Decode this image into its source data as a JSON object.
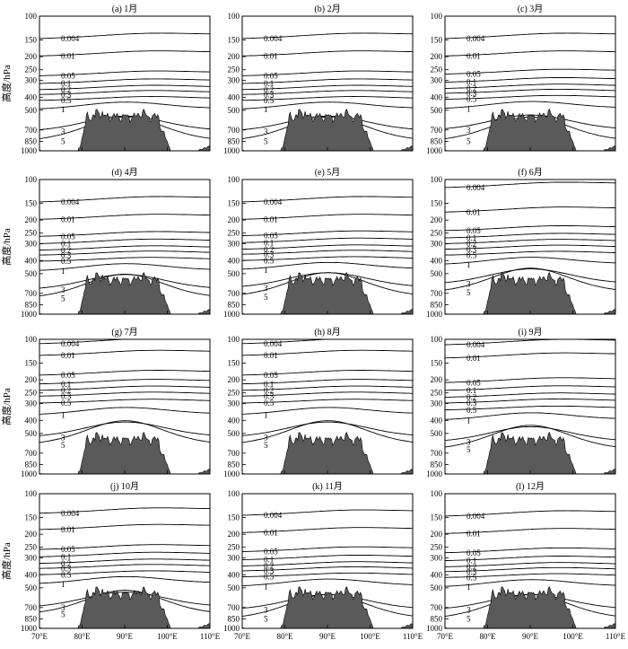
{
  "chart_data": [
    {
      "type": "contour",
      "title": "(a) 1月",
      "ylabel": "高度/hPa",
      "contour_levels": [
        "0.004",
        "0.01",
        "0.05",
        "0.1",
        "0.2",
        "0.3",
        "0.5",
        "1",
        "3",
        "5"
      ],
      "contour_pressure_hPa": [
        147,
        198,
        278,
        317,
        352,
        383,
        423,
        495,
        718,
        850
      ]
    },
    {
      "type": "contour",
      "title": "(b) 2月",
      "ylabel": "",
      "contour_levels": [
        "0.004",
        "0.01",
        "0.05",
        "0.1",
        "0.2",
        "0.3",
        "0.5",
        "1",
        "3",
        "5"
      ],
      "contour_pressure_hPa": [
        147,
        198,
        278,
        317,
        352,
        383,
        423,
        495,
        718,
        850
      ]
    },
    {
      "type": "contour",
      "title": "(c) 3月",
      "ylabel": "",
      "contour_levels": [
        "0.004",
        "0.01",
        "0.05",
        "0.1",
        "0.2",
        "0.3",
        "0.5",
        "1",
        "3",
        "5"
      ],
      "contour_pressure_hPa": [
        147,
        198,
        270,
        310,
        345,
        375,
        415,
        490,
        705,
        850
      ]
    },
    {
      "type": "contour",
      "title": "(d) 4月",
      "ylabel": "高度/hPa",
      "contour_levels": [
        "0.004",
        "0.01",
        "0.05",
        "0.1",
        "0.2",
        "0.3",
        "0.5",
        "1",
        "3",
        "5"
      ],
      "contour_pressure_hPa": [
        147,
        198,
        265,
        300,
        335,
        365,
        405,
        480,
        660,
        765
      ]
    },
    {
      "type": "contour",
      "title": "(e) 5月",
      "ylabel": "",
      "contour_levels": [
        "0.004",
        "0.01",
        "0.05",
        "0.1",
        "0.2",
        "0.3",
        "0.5",
        "1",
        "3",
        "5"
      ],
      "contour_pressure_hPa": [
        147,
        198,
        262,
        295,
        330,
        360,
        400,
        470,
        640,
        745
      ]
    },
    {
      "type": "contour",
      "title": "(f) 6月",
      "ylabel": "",
      "contour_levels": [
        "0.004",
        "0.01",
        "0.05",
        "0.1",
        "0.2",
        "0.3",
        "0.5",
        "1",
        "3",
        "5"
      ],
      "contour_pressure_hPa": [
        115,
        175,
        240,
        272,
        300,
        330,
        365,
        430,
        600,
        690
      ]
    },
    {
      "type": "contour",
      "title": "(g) 7月",
      "ylabel": "高度/hPa",
      "contour_levels": [
        "0.004",
        "0.01",
        "0.05",
        "0.1",
        "0.2",
        "0.3",
        "0.5",
        "1",
        "3",
        "5"
      ],
      "contour_pressure_hPa": [
        108,
        132,
        185,
        215,
        240,
        265,
        298,
        365,
        535,
        610
      ]
    },
    {
      "type": "contour",
      "title": "(h) 8月",
      "ylabel": "",
      "contour_levels": [
        "0.004",
        "0.01",
        "0.05",
        "0.1",
        "0.2",
        "0.3",
        "0.5",
        "1",
        "3",
        "5"
      ],
      "contour_pressure_hPa": [
        108,
        132,
        185,
        215,
        240,
        265,
        298,
        365,
        535,
        610
      ]
    },
    {
      "type": "contour",
      "title": "(i) 9月",
      "ylabel": "",
      "contour_levels": [
        "0.004",
        "0.01",
        "0.05",
        "0.1",
        "0.2",
        "0.3",
        "0.5",
        "1",
        "3",
        "5"
      ],
      "contour_pressure_hPa": [
        110,
        138,
        210,
        240,
        270,
        298,
        335,
        400,
        580,
        660
      ]
    },
    {
      "type": "contour",
      "title": "(j) 10月",
      "ylabel": "高度/hPa",
      "contour_levels": [
        "0.004",
        "0.01",
        "0.05",
        "0.1",
        "0.2",
        "0.3",
        "0.5",
        "1",
        "3",
        "5"
      ],
      "contour_pressure_hPa": [
        140,
        185,
        260,
        295,
        330,
        360,
        400,
        470,
        700,
        790
      ]
    },
    {
      "type": "contour",
      "title": "(k) 11月",
      "ylabel": "",
      "contour_levels": [
        "0.004",
        "0.01",
        "0.05",
        "0.1",
        "0.2",
        "0.3",
        "0.5",
        "1",
        "3",
        "5"
      ],
      "contour_pressure_hPa": [
        145,
        195,
        270,
        310,
        345,
        375,
        415,
        490,
        730,
        850
      ]
    },
    {
      "type": "contour",
      "title": "(l) 12月",
      "ylabel": "",
      "contour_levels": [
        "0.004",
        "0.01",
        "0.05",
        "0.1",
        "0.2",
        "0.3",
        "0.5",
        "1",
        "3",
        "5"
      ],
      "contour_pressure_hPa": [
        147,
        198,
        275,
        315,
        350,
        380,
        420,
        495,
        730,
        850
      ]
    }
  ],
  "axes": {
    "y_ticks": [
      "100",
      "150",
      "200",
      "250",
      "300",
      "400",
      "500",
      "700",
      "850",
      "1000"
    ],
    "y_tick_values": [
      100,
      150,
      200,
      250,
      300,
      400,
      500,
      700,
      850,
      1000
    ],
    "y_range": [
      100,
      1000
    ],
    "y_scale": "log",
    "x_ticks": [
      "70°E",
      "80°E",
      "90°E",
      "100°E",
      "110°E"
    ],
    "x_tick_values": [
      70,
      80,
      90,
      100,
      110
    ],
    "x_range": [
      70,
      110
    ]
  },
  "terrain_color": "#5a5a5a"
}
